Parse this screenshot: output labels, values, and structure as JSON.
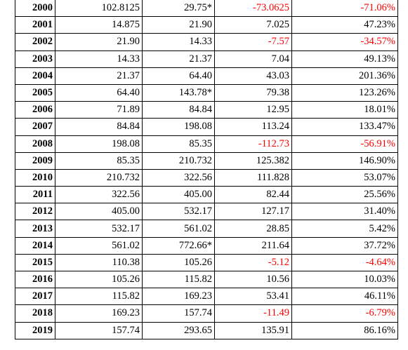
{
  "colors": {
    "negative": "#ff0000",
    "text": "#000000",
    "border": "#000000"
  },
  "rows": [
    {
      "year": "2000",
      "start": "102.8125",
      "end": "29.75*",
      "change": "-73.0625",
      "pct": "-71.06%",
      "negative": true
    },
    {
      "year": "2001",
      "start": "14.875",
      "end": "21.90",
      "change": "7.025",
      "pct": "47.23%",
      "negative": false
    },
    {
      "year": "2002",
      "start": "21.90",
      "end": "14.33",
      "change": "-7.57",
      "pct": "-34.57%",
      "negative": true
    },
    {
      "year": "2003",
      "start": "14.33",
      "end": "21.37",
      "change": "7.04",
      "pct": "49.13%",
      "negative": false
    },
    {
      "year": "2004",
      "start": "21.37",
      "end": "64.40",
      "change": "43.03",
      "pct": "201.36%",
      "negative": false
    },
    {
      "year": "2005",
      "start": "64.40",
      "end": "143.78*",
      "change": "79.38",
      "pct": "123.26%",
      "negative": false
    },
    {
      "year": "2006",
      "start": "71.89",
      "end": "84.84",
      "change": "12.95",
      "pct": "18.01%",
      "negative": false
    },
    {
      "year": "2007",
      "start": "84.84",
      "end": "198.08",
      "change": "113.24",
      "pct": "133.47%",
      "negative": false
    },
    {
      "year": "2008",
      "start": "198.08",
      "end": "85.35",
      "change": "-112.73",
      "pct": "-56.91%",
      "negative": true
    },
    {
      "year": "2009",
      "start": "85.35",
      "end": "210.732",
      "change": "125.382",
      "pct": "146.90%",
      "negative": false
    },
    {
      "year": "2010",
      "start": "210.732",
      "end": "322.56",
      "change": "111.828",
      "pct": "53.07%",
      "negative": false
    },
    {
      "year": "2011",
      "start": "322.56",
      "end": "405.00",
      "change": "82.44",
      "pct": "25.56%",
      "negative": false
    },
    {
      "year": "2012",
      "start": "405.00",
      "end": "532.17",
      "change": "127.17",
      "pct": "31.40%",
      "negative": false
    },
    {
      "year": "2013",
      "start": "532.17",
      "end": "561.02",
      "change": "28.85",
      "pct": "5.42%",
      "negative": false
    },
    {
      "year": "2014",
      "start": "561.02",
      "end": "772.66*",
      "change": "211.64",
      "pct": "37.72%",
      "negative": false
    },
    {
      "year": "2015",
      "start": "110.38",
      "end": "105.26",
      "change": "-5.12",
      "pct": "-4.64%",
      "negative": true
    },
    {
      "year": "2016",
      "start": "105.26",
      "end": "115.82",
      "change": "10.56",
      "pct": "10.03%",
      "negative": false
    },
    {
      "year": "2017",
      "start": "115.82",
      "end": "169.23",
      "change": "53.41",
      "pct": "46.11%",
      "negative": false
    },
    {
      "year": "2018",
      "start": "169.23",
      "end": "157.74",
      "change": "-11.49",
      "pct": "-6.79%",
      "negative": true
    },
    {
      "year": "2019",
      "start": "157.74",
      "end": "293.65",
      "change": "135.91",
      "pct": "86.16%",
      "negative": false
    }
  ]
}
